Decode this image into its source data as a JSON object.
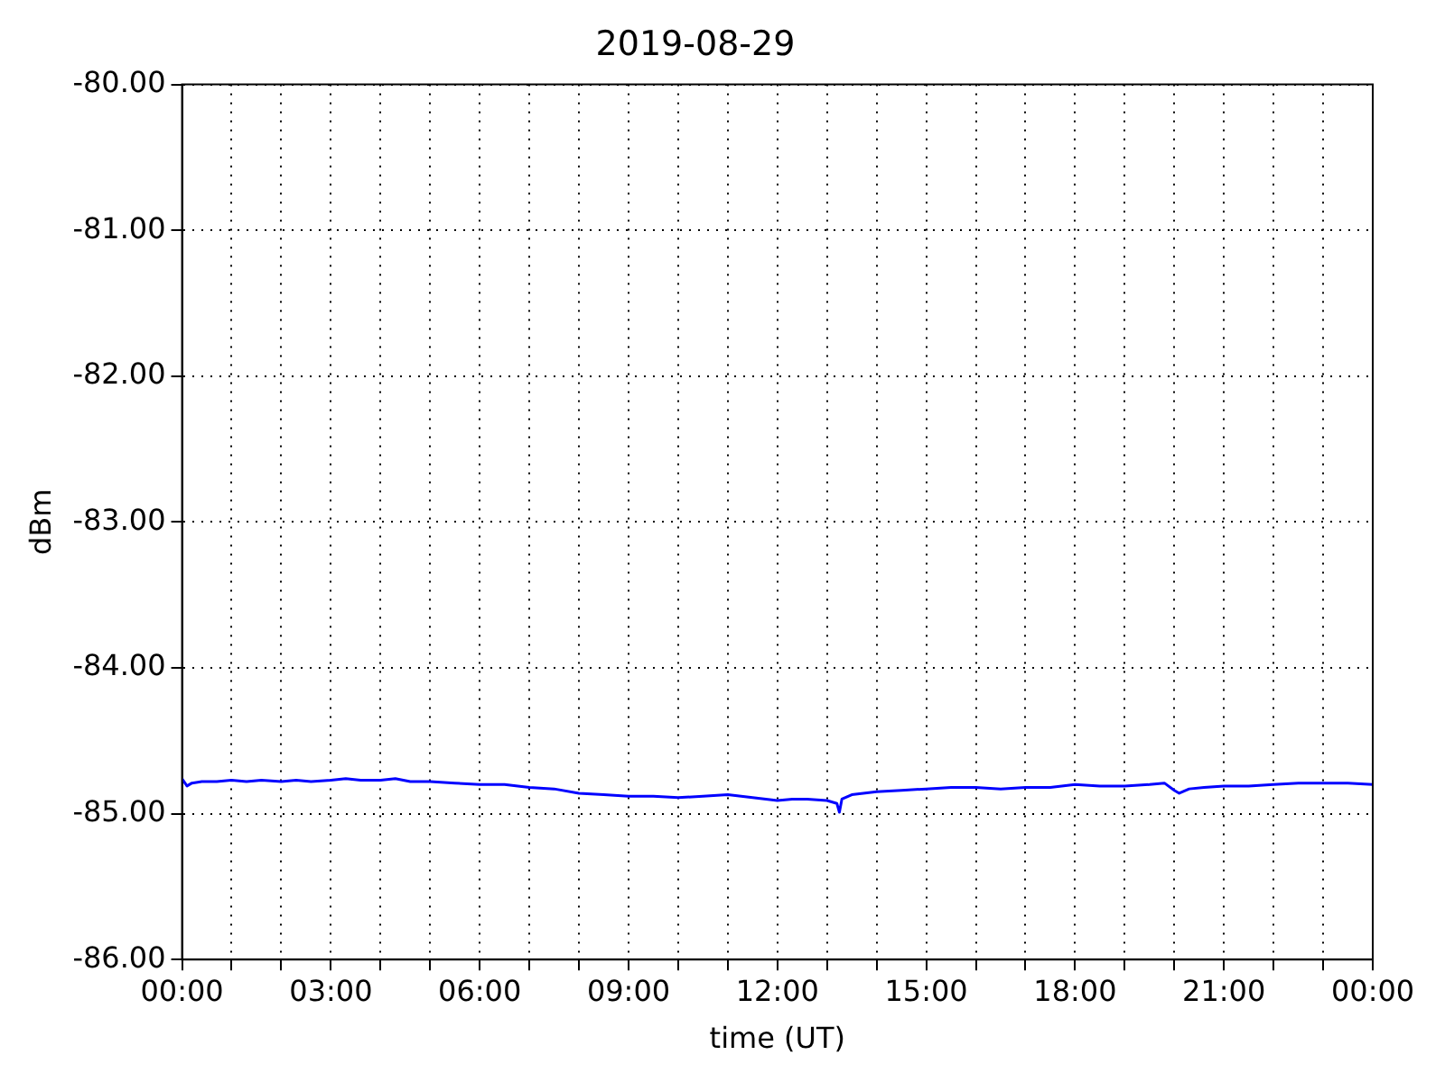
{
  "chart_data": {
    "type": "line",
    "title": "2019-08-29",
    "xlabel": "time (UT)",
    "ylabel": "dBm",
    "x": [
      0,
      0.1,
      0.2,
      0.4,
      0.7,
      1,
      1.3,
      1.6,
      2,
      2.3,
      2.6,
      3,
      3.3,
      3.6,
      4,
      4.3,
      4.6,
      5,
      5.5,
      6,
      6.5,
      7,
      7.5,
      8,
      8.5,
      9,
      9.5,
      10,
      10.5,
      11,
      11.5,
      12,
      12.3,
      12.6,
      13,
      13.2,
      13.25,
      13.3,
      13.5,
      14,
      14.5,
      15,
      15.5,
      16,
      16.5,
      17,
      17.5,
      18,
      18.5,
      19,
      19.5,
      19.8,
      20,
      20.1,
      20.3,
      20.6,
      21,
      21.5,
      22,
      22.5,
      23,
      23.5,
      24
    ],
    "series": [
      {
        "color": "#0000ff",
        "values": [
          -84.76,
          -84.81,
          -84.79,
          -84.78,
          -84.78,
          -84.77,
          -84.78,
          -84.77,
          -84.78,
          -84.77,
          -84.78,
          -84.77,
          -84.76,
          -84.77,
          -84.77,
          -84.76,
          -84.78,
          -84.78,
          -84.79,
          -84.8,
          -84.8,
          -84.82,
          -84.83,
          -84.86,
          -84.87,
          -84.88,
          -84.88,
          -84.89,
          -84.88,
          -84.87,
          -84.89,
          -84.91,
          -84.9,
          -84.9,
          -84.91,
          -84.93,
          -84.99,
          -84.9,
          -84.87,
          -84.85,
          -84.84,
          -84.83,
          -84.82,
          -84.82,
          -84.83,
          -84.82,
          -84.82,
          -84.8,
          -84.81,
          -84.81,
          -84.8,
          -84.79,
          -84.84,
          -84.86,
          -84.83,
          -84.82,
          -84.81,
          -84.81,
          -84.8,
          -84.79,
          -84.79,
          -84.79,
          -84.8
        ]
      }
    ],
    "xlim": [
      0,
      24
    ],
    "xticks": [
      {
        "value": 0,
        "label": "00:00"
      },
      {
        "value": 1,
        "label": null
      },
      {
        "value": 2,
        "label": null
      },
      {
        "value": 3,
        "label": "03:00"
      },
      {
        "value": 4,
        "label": null
      },
      {
        "value": 5,
        "label": null
      },
      {
        "value": 6,
        "label": "06:00"
      },
      {
        "value": 7,
        "label": null
      },
      {
        "value": 8,
        "label": null
      },
      {
        "value": 9,
        "label": "09:00"
      },
      {
        "value": 10,
        "label": null
      },
      {
        "value": 11,
        "label": null
      },
      {
        "value": 12,
        "label": "12:00"
      },
      {
        "value": 13,
        "label": null
      },
      {
        "value": 14,
        "label": null
      },
      {
        "value": 15,
        "label": "15:00"
      },
      {
        "value": 16,
        "label": null
      },
      {
        "value": 17,
        "label": null
      },
      {
        "value": 18,
        "label": "18:00"
      },
      {
        "value": 19,
        "label": null
      },
      {
        "value": 20,
        "label": null
      },
      {
        "value": 21,
        "label": "21:00"
      },
      {
        "value": 22,
        "label": null
      },
      {
        "value": 23,
        "label": null
      },
      {
        "value": 24,
        "label": "00:00"
      }
    ],
    "ylim": [
      -86,
      -80
    ],
    "yticks": [
      {
        "value": -86,
        "label": "-86.00"
      },
      {
        "value": -85,
        "label": "-85.00"
      },
      {
        "value": -84,
        "label": "-84.00"
      },
      {
        "value": -83,
        "label": "-83.00"
      },
      {
        "value": -82,
        "label": "-82.00"
      },
      {
        "value": -81,
        "label": "-81.00"
      },
      {
        "value": -80,
        "label": "-80.00"
      }
    ],
    "grid": true,
    "legend": false,
    "marker": "none",
    "line_style": "solid"
  }
}
